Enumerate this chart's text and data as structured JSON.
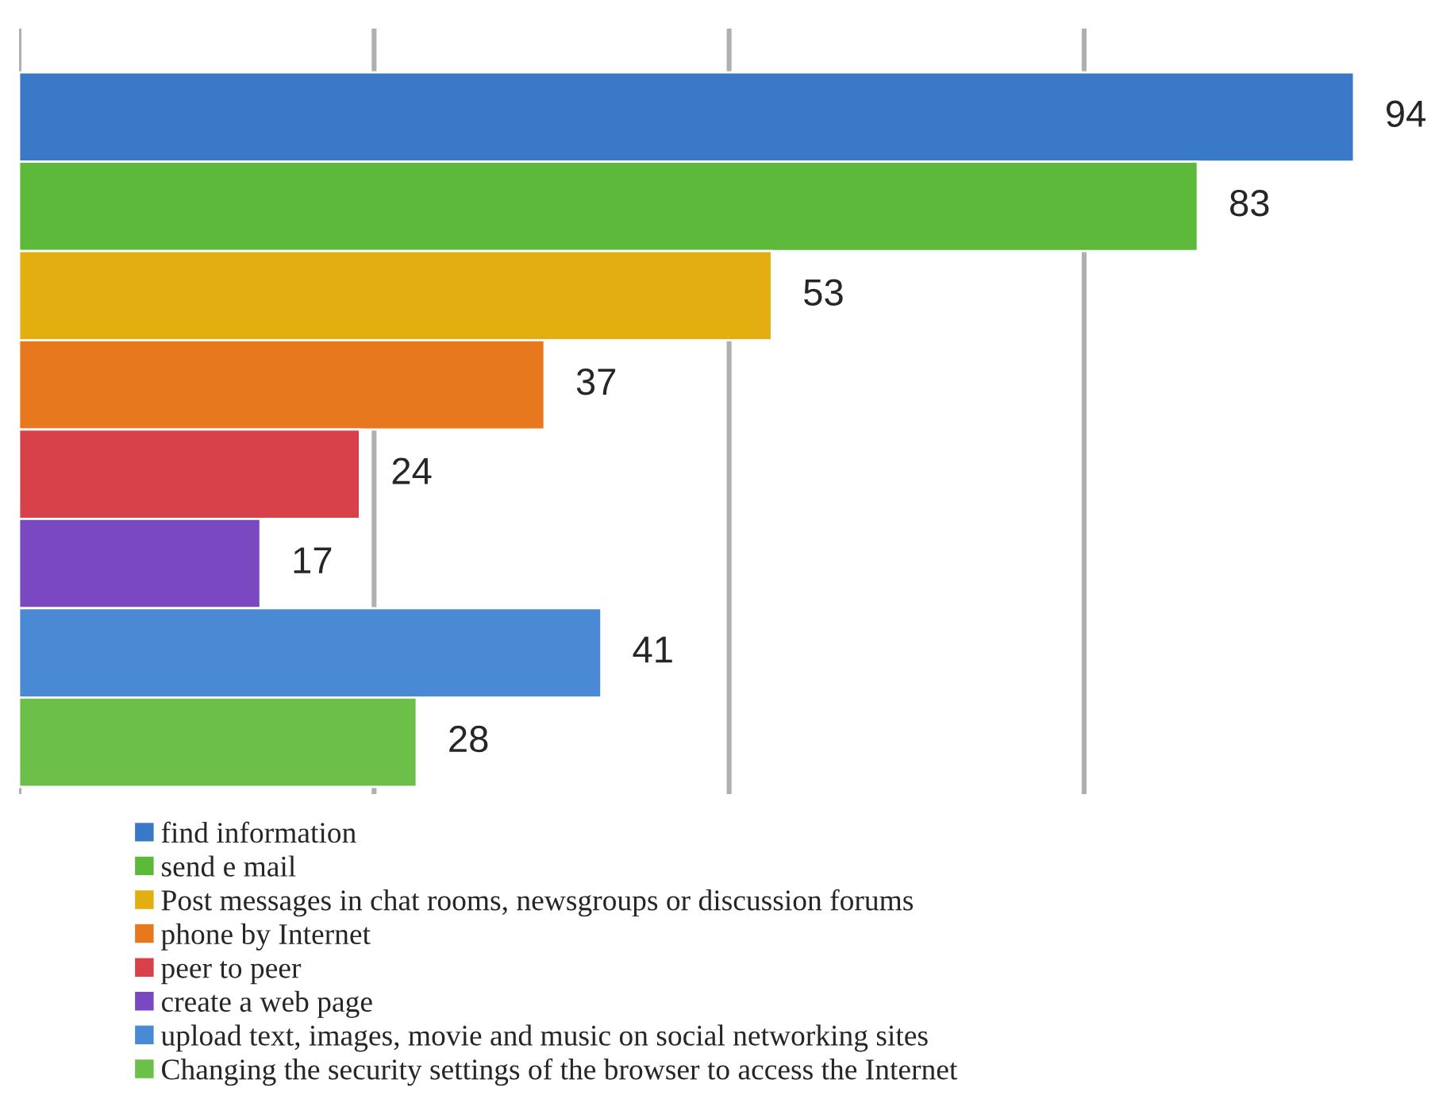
{
  "chart_data": {
    "type": "bar",
    "orientation": "horizontal",
    "categories": [
      null
    ],
    "series": [
      {
        "name": "find information",
        "color": "#3a78c8",
        "values": [
          94
        ]
      },
      {
        "name": "send e mail",
        "color": "#5cb93a",
        "values": [
          83
        ]
      },
      {
        "name": "Post messages in chat rooms, newsgroups or discussion forums",
        "color": "#e3ae10",
        "values": [
          53
        ]
      },
      {
        "name": "phone by Internet",
        "color": "#e8781e",
        "values": [
          37
        ]
      },
      {
        "name": "peer to peer",
        "color": "#d8404a",
        "values": [
          24
        ]
      },
      {
        "name": "create a web page",
        "color": "#7a48c0",
        "values": [
          17
        ]
      },
      {
        "name": "upload text, images, movie and music on social networking sites",
        "color": "#4a8ad4",
        "values": [
          41
        ]
      },
      {
        "name": "Changing the security settings of the browser to access the Internet",
        "color": "#6cc04a",
        "values": [
          28
        ]
      }
    ],
    "xticks": [
      {
        "value": 0,
        "label": null
      },
      {
        "value": 25,
        "label": null
      },
      {
        "value": 50,
        "label": null
      },
      {
        "value": 75,
        "label": null
      }
    ],
    "grid": "x",
    "legend": "bottom",
    "data_labels": true
  }
}
